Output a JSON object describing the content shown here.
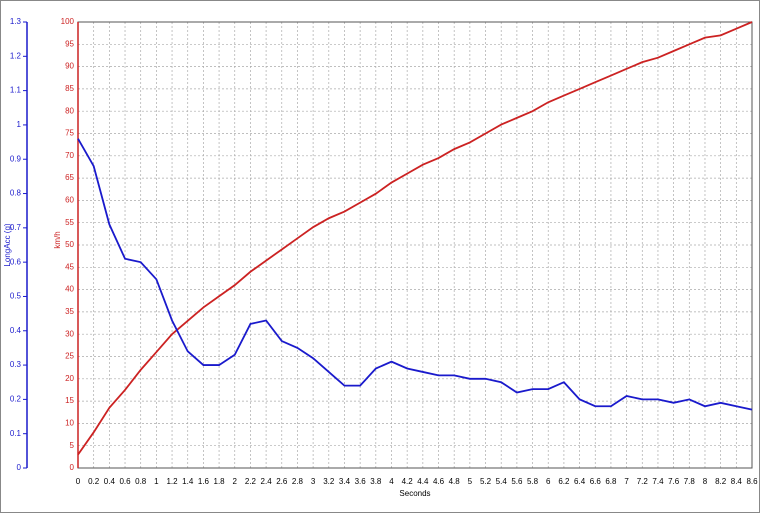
{
  "chart_data": {
    "type": "line",
    "xlabel": "Seconds",
    "ylabel": "km/h",
    "y2label": "LongAcc (g)",
    "x": [
      0,
      0.2,
      0.4,
      0.6,
      0.8,
      1,
      1.2,
      1.4,
      1.6,
      1.8,
      2,
      2.2,
      2.4,
      2.6,
      2.8,
      3,
      3.2,
      3.4,
      3.6,
      3.8,
      4,
      4.2,
      4.4,
      4.6,
      4.8,
      5,
      5.2,
      5.4,
      5.6,
      5.8,
      6,
      6.2,
      6.4,
      6.6,
      6.8,
      7,
      7.2,
      7.4,
      7.6,
      7.8,
      8,
      8.2,
      8.4,
      8.6
    ],
    "series": [
      {
        "name": "km/h",
        "color": "#cc2222",
        "values": [
          3,
          8,
          13.5,
          17.5,
          22,
          26,
          30,
          33,
          36,
          38.5,
          41,
          44,
          46.5,
          49,
          51.5,
          54,
          56,
          57.5,
          59.5,
          61.5,
          64,
          66,
          68,
          69.5,
          71.5,
          73,
          75,
          77,
          78.5,
          80,
          82,
          83.5,
          85,
          86.5,
          88,
          89.5,
          91,
          92,
          93.5,
          95,
          96.5,
          97,
          98.5,
          100
        ]
      },
      {
        "name": "LongAcc (g)",
        "color": "#1a1acc",
        "axis": "y2",
        "values": [
          0.96,
          0.88,
          0.71,
          0.61,
          0.6,
          0.55,
          0.43,
          0.34,
          0.3,
          0.3,
          0.33,
          0.42,
          0.43,
          0.37,
          0.35,
          0.32,
          0.28,
          0.24,
          0.24,
          0.29,
          0.31,
          0.29,
          0.28,
          0.27,
          0.27,
          0.26,
          0.26,
          0.25,
          0.22,
          0.23,
          0.23,
          0.25,
          0.2,
          0.18,
          0.18,
          0.21,
          0.2,
          0.2,
          0.19,
          0.2,
          0.18,
          0.19,
          0.18,
          0.17
        ]
      }
    ],
    "xlim": [
      0,
      8.6
    ],
    "xticks": [
      0,
      0.2,
      0.4,
      0.6,
      0.8,
      1,
      1.2,
      1.4,
      1.6,
      1.8,
      2,
      2.2,
      2.4,
      2.6,
      2.8,
      3,
      3.2,
      3.4,
      3.6,
      3.8,
      4,
      4.2,
      4.4,
      4.6,
      4.8,
      5,
      5.2,
      5.4,
      5.6,
      5.8,
      6,
      6.2,
      6.4,
      6.6,
      6.8,
      7,
      7.2,
      7.4,
      7.6,
      7.8,
      8,
      8.2,
      8.4,
      8.6
    ],
    "ylim": [
      0,
      100
    ],
    "yticks": [
      0,
      5,
      10,
      15,
      20,
      25,
      30,
      35,
      40,
      45,
      50,
      55,
      60,
      65,
      70,
      75,
      80,
      85,
      90,
      95,
      100
    ],
    "y2lim": [
      0,
      1.3
    ],
    "y2ticks": [
      0,
      0.1,
      0.2,
      0.3,
      0.4,
      0.5,
      0.6,
      0.7,
      0.8,
      0.9,
      1,
      1.1,
      1.2,
      1.3
    ],
    "grid": true
  }
}
